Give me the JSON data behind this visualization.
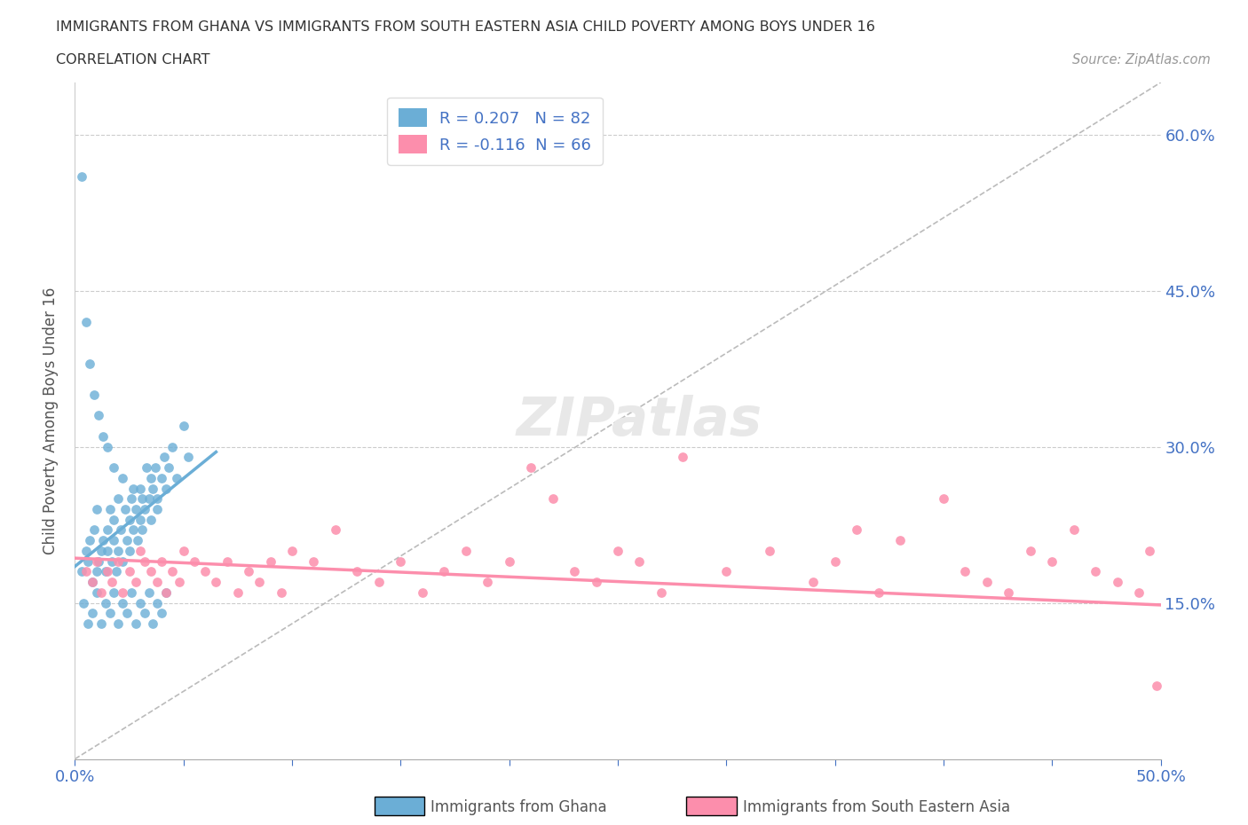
{
  "title": "IMMIGRANTS FROM GHANA VS IMMIGRANTS FROM SOUTH EASTERN ASIA CHILD POVERTY AMONG BOYS UNDER 16",
  "subtitle": "CORRELATION CHART",
  "source": "Source: ZipAtlas.com",
  "ylabel": "Child Poverty Among Boys Under 16",
  "xlim": [
    0.0,
    0.5
  ],
  "ylim": [
    0.0,
    0.65
  ],
  "ghana_color": "#6baed6",
  "sea_color": "#fc8eac",
  "ghana_R": 0.207,
  "ghana_N": 82,
  "sea_R": -0.116,
  "sea_N": 66,
  "legend_ghana_label": "R = 0.207   N = 82",
  "legend_sea_label": "R = -0.116  N = 66",
  "watermark_text": "ZIPatlas",
  "bg_color": "#ffffff",
  "grid_color": "#cccccc",
  "tick_color_blue": "#4472c4",
  "ghana_scatter_x": [
    0.003,
    0.005,
    0.006,
    0.007,
    0.008,
    0.009,
    0.01,
    0.01,
    0.011,
    0.012,
    0.013,
    0.014,
    0.015,
    0.015,
    0.016,
    0.017,
    0.018,
    0.018,
    0.019,
    0.02,
    0.02,
    0.021,
    0.022,
    0.023,
    0.024,
    0.025,
    0.025,
    0.026,
    0.027,
    0.028,
    0.029,
    0.03,
    0.03,
    0.031,
    0.032,
    0.033,
    0.034,
    0.035,
    0.035,
    0.036,
    0.037,
    0.038,
    0.04,
    0.041,
    0.042,
    0.043,
    0.045,
    0.047,
    0.05,
    0.052,
    0.004,
    0.006,
    0.008,
    0.01,
    0.012,
    0.014,
    0.016,
    0.018,
    0.02,
    0.022,
    0.024,
    0.026,
    0.028,
    0.03,
    0.032,
    0.034,
    0.036,
    0.038,
    0.04,
    0.042,
    0.003,
    0.005,
    0.007,
    0.009,
    0.011,
    0.013,
    0.015,
    0.018,
    0.022,
    0.027,
    0.031,
    0.038
  ],
  "ghana_scatter_y": [
    0.18,
    0.2,
    0.19,
    0.21,
    0.17,
    0.22,
    0.18,
    0.24,
    0.19,
    0.2,
    0.21,
    0.18,
    0.22,
    0.2,
    0.24,
    0.19,
    0.23,
    0.21,
    0.18,
    0.25,
    0.2,
    0.22,
    0.19,
    0.24,
    0.21,
    0.23,
    0.2,
    0.25,
    0.22,
    0.24,
    0.21,
    0.23,
    0.26,
    0.22,
    0.24,
    0.28,
    0.25,
    0.27,
    0.23,
    0.26,
    0.28,
    0.25,
    0.27,
    0.29,
    0.26,
    0.28,
    0.3,
    0.27,
    0.32,
    0.29,
    0.15,
    0.13,
    0.14,
    0.16,
    0.13,
    0.15,
    0.14,
    0.16,
    0.13,
    0.15,
    0.14,
    0.16,
    0.13,
    0.15,
    0.14,
    0.16,
    0.13,
    0.15,
    0.14,
    0.16,
    0.56,
    0.42,
    0.38,
    0.35,
    0.33,
    0.31,
    0.3,
    0.28,
    0.27,
    0.26,
    0.25,
    0.24
  ],
  "sea_scatter_x": [
    0.005,
    0.008,
    0.01,
    0.012,
    0.015,
    0.017,
    0.02,
    0.022,
    0.025,
    0.028,
    0.03,
    0.032,
    0.035,
    0.038,
    0.04,
    0.042,
    0.045,
    0.048,
    0.05,
    0.055,
    0.06,
    0.065,
    0.07,
    0.075,
    0.08,
    0.085,
    0.09,
    0.095,
    0.1,
    0.11,
    0.12,
    0.13,
    0.14,
    0.15,
    0.16,
    0.17,
    0.18,
    0.19,
    0.2,
    0.21,
    0.22,
    0.23,
    0.24,
    0.25,
    0.26,
    0.27,
    0.28,
    0.3,
    0.32,
    0.34,
    0.35,
    0.36,
    0.37,
    0.38,
    0.4,
    0.41,
    0.42,
    0.43,
    0.44,
    0.45,
    0.46,
    0.47,
    0.48,
    0.49,
    0.495,
    0.498
  ],
  "sea_scatter_y": [
    0.18,
    0.17,
    0.19,
    0.16,
    0.18,
    0.17,
    0.19,
    0.16,
    0.18,
    0.17,
    0.2,
    0.19,
    0.18,
    0.17,
    0.19,
    0.16,
    0.18,
    0.17,
    0.2,
    0.19,
    0.18,
    0.17,
    0.19,
    0.16,
    0.18,
    0.17,
    0.19,
    0.16,
    0.2,
    0.19,
    0.22,
    0.18,
    0.17,
    0.19,
    0.16,
    0.18,
    0.2,
    0.17,
    0.19,
    0.28,
    0.25,
    0.18,
    0.17,
    0.2,
    0.19,
    0.16,
    0.29,
    0.18,
    0.2,
    0.17,
    0.19,
    0.22,
    0.16,
    0.21,
    0.25,
    0.18,
    0.17,
    0.16,
    0.2,
    0.19,
    0.22,
    0.18,
    0.17,
    0.16,
    0.2,
    0.07
  ],
  "ghana_line_x": [
    0.0,
    0.065
  ],
  "ghana_line_y": [
    0.185,
    0.295
  ],
  "sea_line_x": [
    0.0,
    0.5
  ],
  "sea_line_y": [
    0.193,
    0.148
  ]
}
